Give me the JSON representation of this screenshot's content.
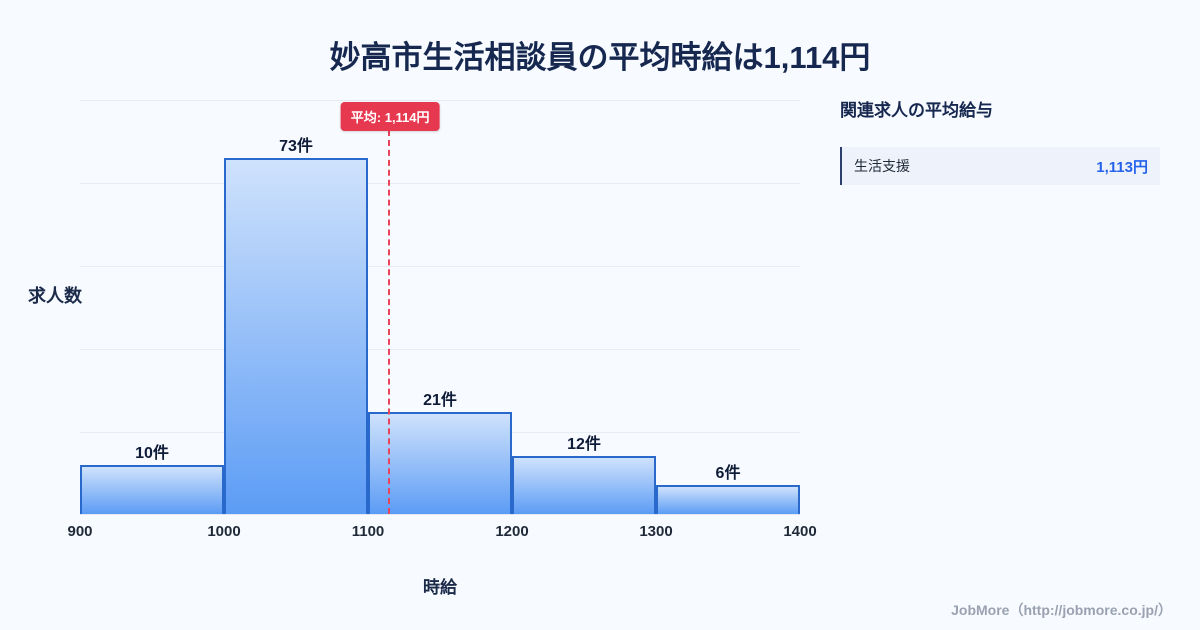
{
  "title": "妙高市生活相談員の平均時給は1,114円",
  "chart_data": {
    "type": "bar",
    "title": "妙高市生活相談員の平均時給は1,114円",
    "xlabel": "時給",
    "ylabel": "求人数",
    "bins": [
      900,
      1000,
      1100,
      1200,
      1300,
      1400
    ],
    "categories": [
      "900-1000",
      "1000-1100",
      "1100-1200",
      "1200-1300",
      "1300-1400"
    ],
    "values": [
      10,
      73,
      21,
      12,
      6
    ],
    "bar_labels": [
      "10件",
      "73件",
      "21件",
      "12件",
      "6件"
    ],
    "x_ticks": [
      "900",
      "1000",
      "1100",
      "1200",
      "1300",
      "1400"
    ],
    "average_line": {
      "value": 1114,
      "label": "平均: 1,114円"
    },
    "ylim": [
      0,
      85
    ],
    "grid": true,
    "legend": "none"
  },
  "sidebar": {
    "heading": "関連求人の平均給与",
    "rows": [
      {
        "label": "生活支援",
        "value": "1,113円"
      }
    ]
  },
  "footer": {
    "credit": "JobMore（http://jobmore.co.jp/）"
  },
  "colors": {
    "background": "#f7faff",
    "title_text": "#16284f",
    "bar_fill_top": "#cfe2fc",
    "bar_fill_bottom": "#5c9cf5",
    "bar_border": "#2a69cc",
    "average_red": "#e63950",
    "value_blue": "#2563eb",
    "gridline": "#e7ebf3",
    "credit_gray": "#9aa2b1"
  }
}
